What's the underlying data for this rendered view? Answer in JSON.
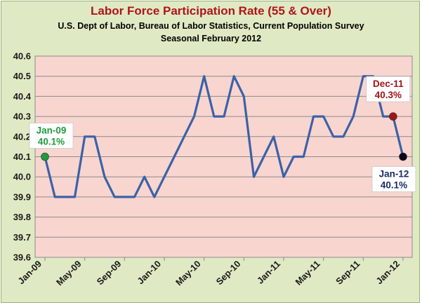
{
  "chart_data": {
    "type": "line",
    "title": "Labor Force Participation Rate  (55 & Over)",
    "subtitle": "U.S. Dept of Labor, Bureau of Labor Statistics, Current Population Survey",
    "subtitle2": "Seasonal February 2012",
    "ylim": [
      39.6,
      40.6
    ],
    "yticks": [
      "39.6",
      "39.7",
      "39.8",
      "39.9",
      "40.0",
      "40.1",
      "40.2",
      "40.3",
      "40.4",
      "40.5",
      "40.6"
    ],
    "xtick_labels": [
      "Jan-09",
      "May-09",
      "Sep-09",
      "Jan-10",
      "May-10",
      "Sep-10",
      "Jan-11",
      "May-11",
      "Sep-11",
      "Jan-12"
    ],
    "xtick_indices": [
      0,
      4,
      8,
      12,
      16,
      20,
      24,
      28,
      32,
      36
    ],
    "series": [
      {
        "color": "#3a62a8",
        "x": [
          "Jan-09",
          "Feb-09",
          "Mar-09",
          "Apr-09",
          "May-09",
          "Jun-09",
          "Jul-09",
          "Aug-09",
          "Sep-09",
          "Oct-09",
          "Nov-09",
          "Dec-09",
          "Jan-10",
          "Feb-10",
          "Mar-10",
          "Apr-10",
          "May-10",
          "Jun-10",
          "Jul-10",
          "Aug-10",
          "Sep-10",
          "Oct-10",
          "Nov-10",
          "Dec-10",
          "Jan-11",
          "Feb-11",
          "Mar-11",
          "Apr-11",
          "May-11",
          "Jun-11",
          "Jul-11",
          "Aug-11",
          "Sep-11",
          "Oct-11",
          "Nov-11",
          "Dec-11",
          "Jan-12"
        ],
        "values": [
          40.1,
          39.9,
          39.9,
          39.9,
          40.2,
          40.2,
          40.0,
          39.9,
          39.9,
          39.9,
          40.0,
          39.9,
          40.0,
          40.1,
          40.2,
          40.3,
          40.5,
          40.3,
          40.3,
          40.5,
          40.4,
          40.0,
          40.1,
          40.2,
          40.0,
          40.1,
          40.1,
          40.3,
          40.3,
          40.2,
          40.2,
          40.3,
          40.5,
          40.5,
          40.3,
          40.3,
          40.1
        ]
      }
    ],
    "annotations": [
      {
        "index": 0,
        "line1": "Jan-09",
        "line2": "40.1%",
        "color": "#1f9a3c",
        "marker": "#1f9a3c"
      },
      {
        "index": 35,
        "line1": "Dec-11",
        "line2": "40.3%",
        "color": "#a0141a",
        "marker": "#a0141a"
      },
      {
        "index": 36,
        "line1": "Jan-12",
        "line2": "40.1%",
        "color": "#1a2a6a",
        "marker": "#0a0a1a"
      }
    ],
    "grid": true,
    "plot_background": "#f9d5cf"
  }
}
